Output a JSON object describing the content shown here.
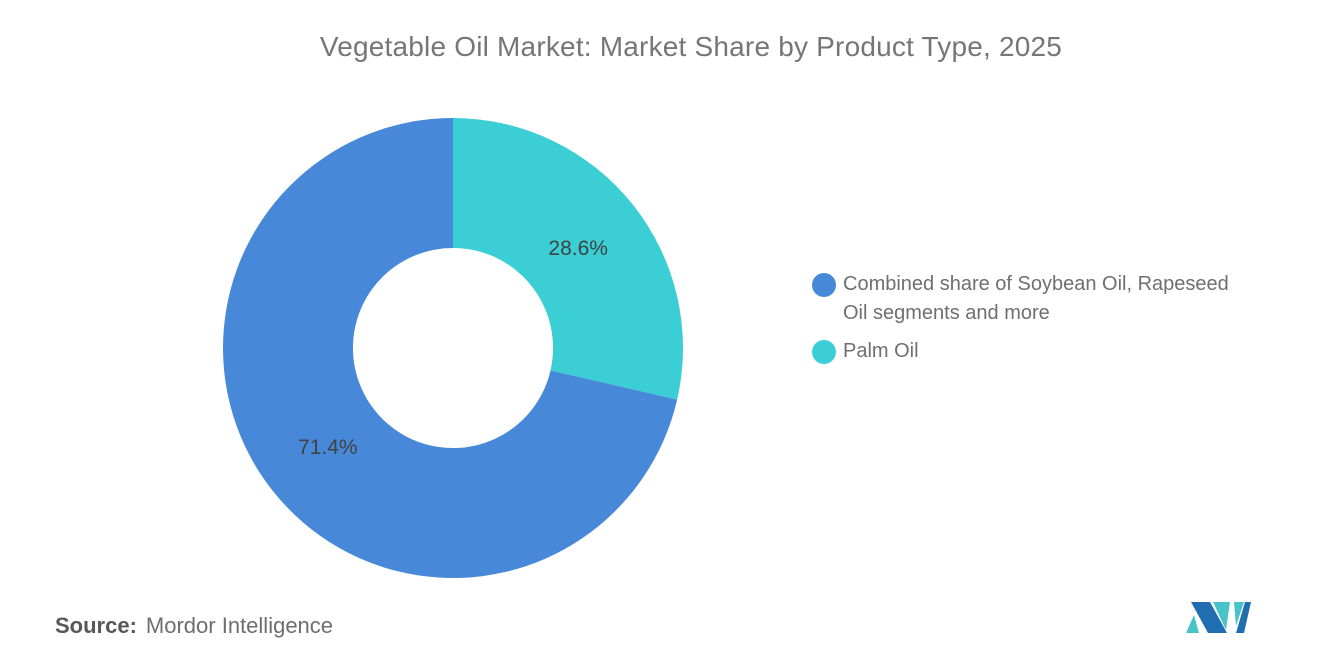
{
  "chart_data": {
    "type": "pie",
    "donut": true,
    "title": "Vegetable Oil Market: Market Share by Product Type, 2025",
    "rotation_deg": 0,
    "direction": "clockwise",
    "inner_radius_ratio": 0.435,
    "legend_position": "right",
    "label_color": "#3f4245",
    "slices": [
      {
        "name": "Palm Oil",
        "value": 28.6,
        "label": "28.6%",
        "color": "#3cced5"
      },
      {
        "name": "Combined share of Soybean Oil, Rapeseed Oil segments and more",
        "value": 71.4,
        "label": "71.4%",
        "color": "#4788d8"
      }
    ]
  },
  "legend": {
    "items": [
      {
        "label": "Combined share of Soybean Oil, Rapeseed Oil segments and more",
        "color": "#4788d8"
      },
      {
        "label": "Palm Oil",
        "color": "#3cced5"
      }
    ]
  },
  "footer": {
    "source_label": "Source:",
    "source_value": "Mordor Intelligence"
  },
  "logo": {
    "name": "mordor-intelligence-logo",
    "dark_blue": "#206eb1",
    "teal": "#48c4c9"
  }
}
